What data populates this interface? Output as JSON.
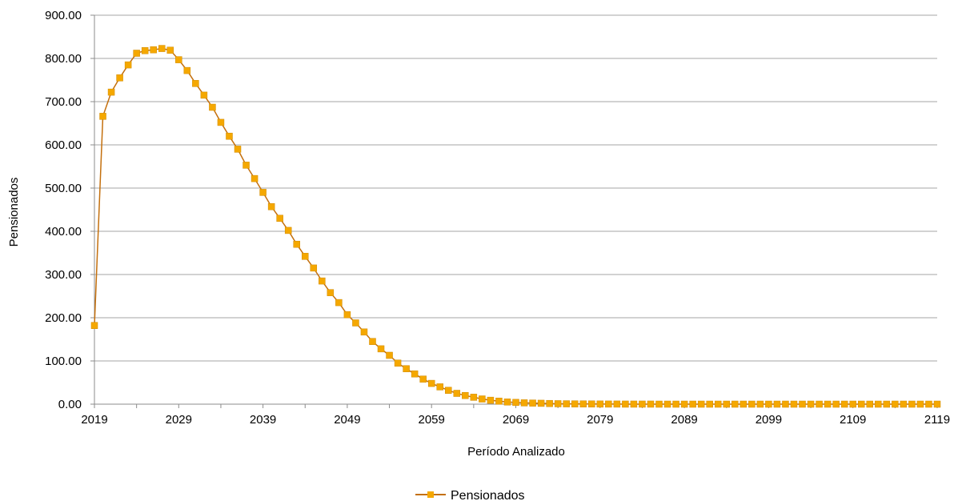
{
  "chart_data": {
    "type": "line",
    "title": "",
    "xlabel": "Período Analizado",
    "ylabel": "Pensionados",
    "xlim": [
      2019,
      2119
    ],
    "ylim": [
      0,
      900
    ],
    "yticks": [
      "0.00",
      "100.00",
      "200.00",
      "300.00",
      "400.00",
      "500.00",
      "600.00",
      "700.00",
      "800.00",
      "900.00"
    ],
    "xticks": [
      "2019",
      "2029",
      "2039",
      "2049",
      "2059",
      "2069",
      "2079",
      "2089",
      "2099",
      "2109",
      "2119"
    ],
    "grid": true,
    "legend": {
      "position": "bottom",
      "entries": [
        "Pensionados"
      ]
    },
    "colors": {
      "line": "#c4700e",
      "marker": "#f5a800",
      "grid": "#a6a6a6",
      "axis": "#8c8c8c"
    },
    "series": [
      {
        "name": "Pensionados",
        "x_start": 2019,
        "x_step": 1,
        "values": [
          182,
          666,
          722,
          755,
          785,
          812,
          818,
          820,
          823,
          819,
          797,
          772,
          742,
          715,
          687,
          652,
          620,
          590,
          553,
          522,
          490,
          457,
          430,
          402,
          370,
          342,
          315,
          285,
          258,
          235,
          207,
          188,
          167,
          145,
          128,
          113,
          95,
          82,
          70,
          58,
          48,
          40,
          32,
          25,
          20,
          16,
          12,
          9,
          7,
          5,
          4,
          3,
          2.5,
          2,
          1.5,
          1,
          0.8,
          0.6,
          0.5,
          0.4,
          0.3,
          0.2,
          0.2,
          0.1,
          0.1,
          0.1,
          0.1,
          0,
          0,
          0,
          0,
          0,
          0,
          0,
          0,
          0,
          0,
          0,
          0,
          0,
          0,
          0,
          0,
          0,
          0,
          0,
          0,
          0,
          0,
          0,
          0,
          0,
          0,
          0,
          0,
          0,
          0,
          0,
          0,
          0,
          0
        ]
      }
    ]
  }
}
